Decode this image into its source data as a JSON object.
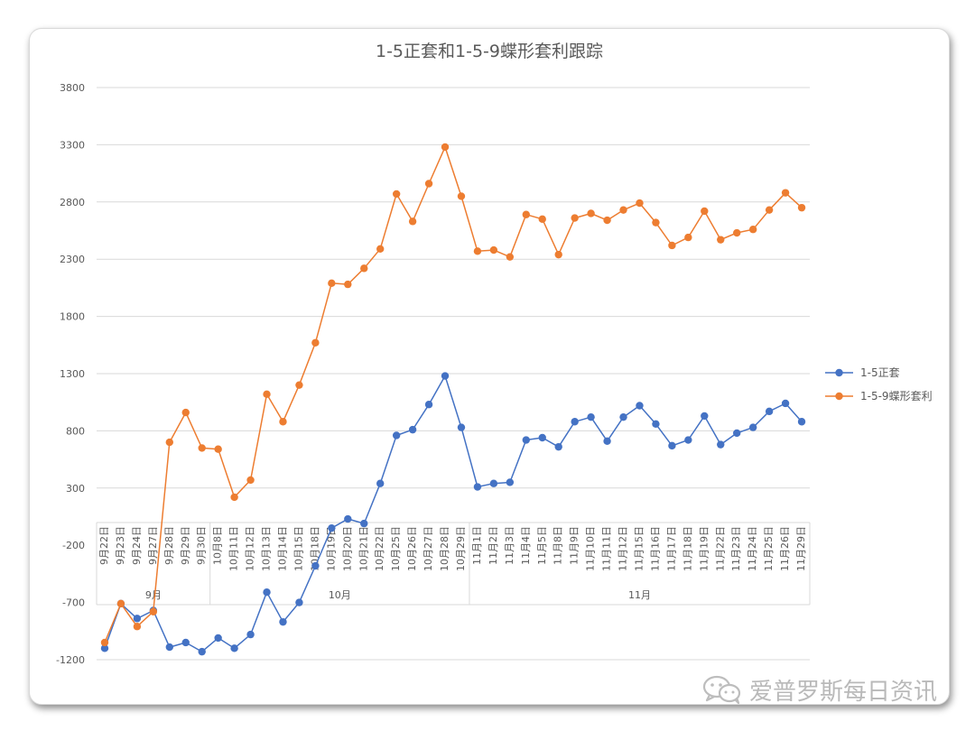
{
  "chart_data": {
    "type": "line",
    "title": "1-5正套和1-5-9蝶形套利跟踪",
    "ylim": [
      -1200,
      3800
    ],
    "yticks": [
      -1200,
      -700,
      -200,
      300,
      800,
      1300,
      1800,
      2300,
      2800,
      3300,
      3800
    ],
    "grid": true,
    "legend_position": "right",
    "categories": [
      "9月22日",
      "9月23日",
      "9月24日",
      "9月27日",
      "9月28日",
      "9月29日",
      "9月30日",
      "10月8日",
      "10月11日",
      "10月12日",
      "10月13日",
      "10月14日",
      "10月15日",
      "10月18日",
      "10月19日",
      "10月20日",
      "10月21日",
      "10月22日",
      "10月25日",
      "10月26日",
      "10月27日",
      "10月28日",
      "10月29日",
      "11月1日",
      "11月2日",
      "11月3日",
      "11月4日",
      "11月5日",
      "11月8日",
      "11月9日",
      "11月10日",
      "11月11日",
      "11月12日",
      "11月15日",
      "11月16日",
      "11月17日",
      "11月18日",
      "11月19日",
      "11月22日",
      "11月23日",
      "11月24日",
      "11月25日",
      "11月26日",
      "11月29日"
    ],
    "groups": [
      {
        "label": "9月",
        "count": 7
      },
      {
        "label": "10月",
        "count": 16
      },
      {
        "label": "11月",
        "count": 21
      }
    ],
    "series": [
      {
        "name": "1-5正套",
        "color": "#4472C4",
        "values": [
          -1100,
          -710,
          -840,
          -770,
          -1090,
          -1050,
          -1130,
          -1010,
          -1100,
          -980,
          -610,
          -870,
          -700,
          -380,
          -50,
          30,
          -10,
          340,
          760,
          810,
          1030,
          1280,
          830,
          310,
          340,
          350,
          720,
          740,
          660,
          880,
          920,
          710,
          920,
          1020,
          860,
          670,
          720,
          930,
          680,
          780,
          830,
          970,
          1040,
          880
        ]
      },
      {
        "name": "1-5-9蝶形套利",
        "color": "#ED7D31",
        "values": [
          -1050,
          -710,
          -910,
          -780,
          700,
          960,
          650,
          640,
          220,
          370,
          1120,
          880,
          1200,
          1570,
          2090,
          2080,
          2220,
          2390,
          2870,
          2630,
          2960,
          3280,
          2850,
          2370,
          2380,
          2320,
          2690,
          2650,
          2340,
          2660,
          2700,
          2640,
          2730,
          2790,
          2620,
          2420,
          2490,
          2720,
          2470,
          2530,
          2560,
          2730,
          2880,
          2750
        ]
      }
    ]
  },
  "watermark": {
    "text": "爱普罗斯每日资讯",
    "icon": "wechat-icon"
  }
}
